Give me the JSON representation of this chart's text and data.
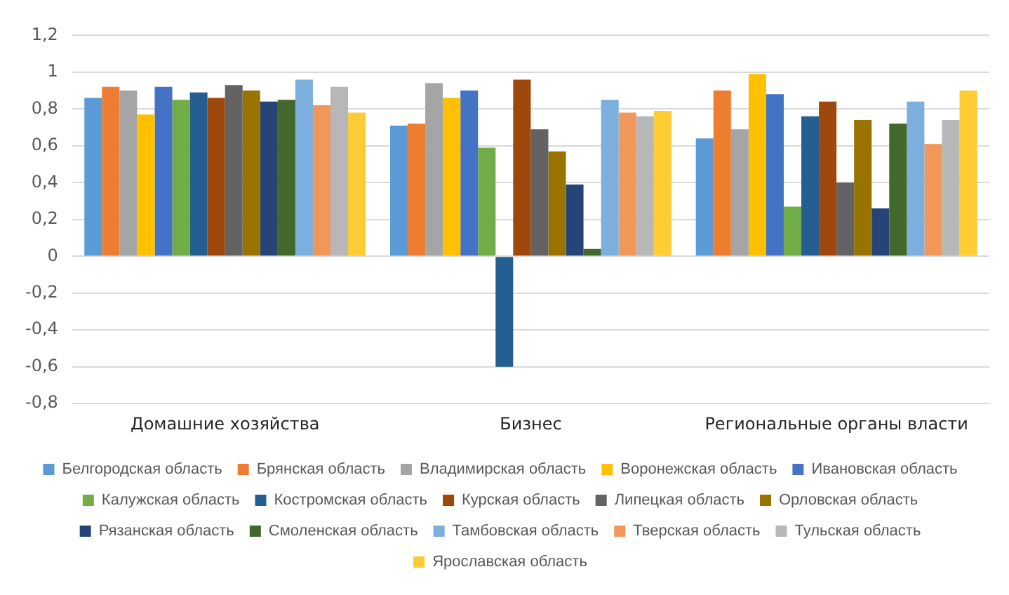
{
  "chart_data": {
    "type": "bar",
    "categories": [
      "Домашние хозяйства",
      "Бизнес",
      "Региональные органы власти"
    ],
    "ylim": [
      -0.8,
      1.2
    ],
    "yticks": [
      {
        "value": -0.8,
        "label": "-0,8"
      },
      {
        "value": -0.6,
        "label": "-0,6"
      },
      {
        "value": -0.4,
        "label": "-0,4"
      },
      {
        "value": -0.2,
        "label": "-0,2"
      },
      {
        "value": 0,
        "label": "0"
      },
      {
        "value": 0.2,
        "label": "0,2"
      },
      {
        "value": 0.4,
        "label": "0,4"
      },
      {
        "value": 0.6,
        "label": "0,6"
      },
      {
        "value": 0.8,
        "label": "0,8"
      },
      {
        "value": 1,
        "label": "1"
      },
      {
        "value": 1.2,
        "label": "1,2"
      }
    ],
    "grid": "y",
    "legend": "bottom",
    "series": [
      {
        "name": "Белгородская область",
        "color": "#5b9bd5",
        "values": [
          0.86,
          0.71,
          0.64
        ]
      },
      {
        "name": "Брянская область",
        "color": "#ed7d31",
        "values": [
          0.92,
          0.72,
          0.9
        ]
      },
      {
        "name": "Владимирская область",
        "color": "#a5a5a5",
        "values": [
          0.9,
          0.94,
          0.69
        ]
      },
      {
        "name": "Воронежская область",
        "color": "#ffc000",
        "values": [
          0.77,
          0.86,
          0.99
        ]
      },
      {
        "name": "Ивановская область",
        "color": "#4472c4",
        "values": [
          0.92,
          0.9,
          0.88
        ]
      },
      {
        "name": "Калужская область",
        "color": "#70ad47",
        "values": [
          0.85,
          0.59,
          0.27
        ]
      },
      {
        "name": "Костромская область",
        "color": "#255e91",
        "values": [
          0.89,
          -0.6,
          0.76
        ]
      },
      {
        "name": "Курская область",
        "color": "#9e480e",
        "values": [
          0.86,
          0.96,
          0.84
        ]
      },
      {
        "name": "Липецкая область",
        "color": "#636363",
        "values": [
          0.93,
          0.69,
          0.4
        ]
      },
      {
        "name": "Орловская область",
        "color": "#997300",
        "values": [
          0.9,
          0.57,
          0.74
        ]
      },
      {
        "name": "Рязанская область",
        "color": "#264478",
        "values": [
          0.84,
          0.39,
          0.26
        ]
      },
      {
        "name": "Смоленская область",
        "color": "#43682b",
        "values": [
          0.85,
          0.04,
          0.72
        ]
      },
      {
        "name": "Тамбовская область",
        "color": "#7cafdd",
        "values": [
          0.96,
          0.85,
          0.84
        ]
      },
      {
        "name": "Тверская область",
        "color": "#f1975a",
        "values": [
          0.82,
          0.78,
          0.61
        ]
      },
      {
        "name": "Тульская область",
        "color": "#b7b7b7",
        "values": [
          0.92,
          0.76,
          0.74
        ]
      },
      {
        "name": "Ярославская область",
        "color": "#ffcd33",
        "values": [
          0.78,
          0.79,
          0.9
        ]
      }
    ]
  }
}
